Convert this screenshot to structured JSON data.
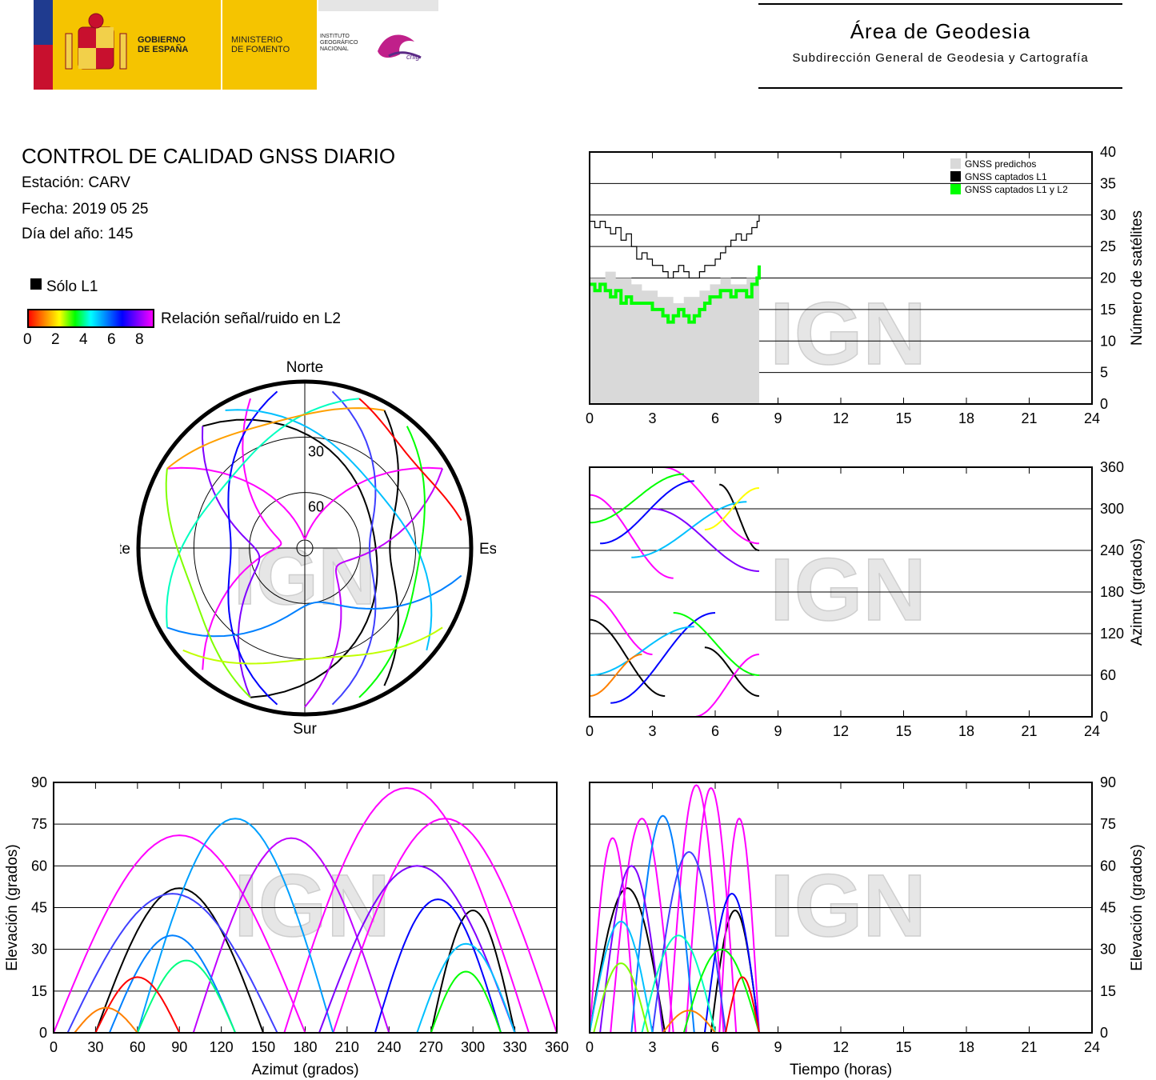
{
  "header": {
    "gov_line1": "GOBIERNO",
    "gov_line2": "DE ESPAÑA",
    "min_line1": "MINISTERIO",
    "min_line2": "DE FOMENTO",
    "ign_line1": "INSTITUTO",
    "ign_line2": "GEOGRÁFICO",
    "ign_line3": "NACIONAL",
    "cnig": "cnig",
    "area_title": "Área de Geodesia",
    "area_subtitle": "Subdirección General de Geodesia y Cartografía"
  },
  "info": {
    "title": "CONTROL DE CALIDAD GNSS DIARIO",
    "station": "Estación: CARV",
    "date": "Fecha: 2019 05 25",
    "doy": "Día del año: 145"
  },
  "legend": {
    "only_l1": "Sólo L1",
    "snr_label": "Relación señal/ruido en L2",
    "snr_ticks": [
      "0",
      "2",
      "4",
      "6",
      "8"
    ],
    "colors": [
      "#ff0000",
      "#ff8000",
      "#ffff00",
      "#00ff00",
      "#00ffff",
      "#0080ff",
      "#0000ff",
      "#8000ff",
      "#ff00ff"
    ]
  },
  "watermark": "IGN",
  "chart_data": [
    {
      "id": "sky",
      "type": "scatter",
      "title": "",
      "labels": {
        "north": "Norte",
        "south": "Sur",
        "east": "Este",
        "west": "Oeste"
      },
      "rings": [
        "30",
        "60"
      ],
      "tracks": [
        {
          "az_start": 320,
          "az_end": 200,
          "max_el": 52,
          "color": "#000000"
        },
        {
          "az_start": 30,
          "az_end": 150,
          "max_el": 44,
          "color": "#000000"
        },
        {
          "az_start": 300,
          "az_end": 60,
          "max_el": 85,
          "color": "#ff00ff"
        },
        {
          "az_start": 220,
          "az_end": 340,
          "max_el": 77,
          "color": "#ff00ff"
        },
        {
          "az_start": 60,
          "az_end": 180,
          "max_el": 70,
          "color": "#c000ff"
        },
        {
          "az_start": 200,
          "az_end": 320,
          "max_el": 65,
          "color": "#8000ff"
        },
        {
          "az_start": 10,
          "az_end": 170,
          "max_el": 55,
          "color": "#4040ff"
        },
        {
          "az_start": 190,
          "az_end": 350,
          "max_el": 50,
          "color": "#0000ff"
        },
        {
          "az_start": 100,
          "az_end": 240,
          "max_el": 60,
          "color": "#0080ff"
        },
        {
          "az_start": 330,
          "az_end": 130,
          "max_el": 40,
          "color": "#00c0ff"
        },
        {
          "az_start": 240,
          "az_end": 20,
          "max_el": 35,
          "color": "#00ffc0"
        },
        {
          "az_start": 40,
          "az_end": 160,
          "max_el": 28,
          "color": "#00ff00"
        },
        {
          "az_start": 200,
          "az_end": 300,
          "max_el": 25,
          "color": "#80ff00"
        },
        {
          "az_start": 120,
          "az_end": 230,
          "max_el": 30,
          "color": "#c0ff00"
        },
        {
          "az_start": 300,
          "az_end": 30,
          "max_el": 20,
          "color": "#ffa000"
        },
        {
          "az_start": 20,
          "az_end": 80,
          "max_el": 15,
          "color": "#ff0000"
        }
      ]
    },
    {
      "id": "satellites",
      "type": "line",
      "xlabel": "",
      "ylabel": "Número de satélites",
      "xlim": [
        0,
        24
      ],
      "ylim": [
        0,
        40
      ],
      "xticks": [
        "0",
        "3",
        "6",
        "9",
        "12",
        "15",
        "18",
        "21",
        "24"
      ],
      "yticks": [
        "0",
        "5",
        "10",
        "15",
        "20",
        "25",
        "30",
        "35",
        "40"
      ],
      "legend": [
        "GNSS predichos",
        "GNSS captados L1",
        "GNSS captados L1 y L2"
      ],
      "x": [
        0,
        0.25,
        0.5,
        0.75,
        1,
        1.25,
        1.5,
        1.75,
        2,
        2.25,
        2.5,
        2.75,
        3,
        3.25,
        3.5,
        3.75,
        4,
        4.25,
        4.5,
        4.75,
        5,
        5.25,
        5.5,
        5.75,
        6,
        6.25,
        6.5,
        6.75,
        7,
        7.25,
        7.5,
        7.75,
        8,
        8.1
      ],
      "series": [
        {
          "name": "GNSS predichos",
          "color": "#d9d9d9",
          "values": [
            20,
            20,
            20,
            21,
            21,
            20,
            20,
            20,
            19,
            19,
            18,
            18,
            18,
            17,
            17,
            17,
            16,
            16,
            17,
            17,
            17,
            18,
            18,
            19,
            19,
            20,
            20,
            19,
            19,
            19,
            20,
            20,
            21,
            23
          ]
        },
        {
          "name": "GNSS captados L1",
          "color": "#000000",
          "values": [
            29,
            28,
            29,
            28,
            27,
            28,
            26,
            27,
            25,
            23,
            24,
            23,
            22,
            22,
            21,
            20,
            21,
            22,
            21,
            20,
            20,
            21,
            22,
            22,
            23,
            24,
            25,
            26,
            27,
            26,
            27,
            28,
            29,
            30
          ]
        },
        {
          "name": "GNSS captados L1 y L2",
          "color": "#00ff00",
          "values": [
            19,
            18,
            19,
            18,
            17,
            18,
            16,
            17,
            16,
            16,
            16,
            16,
            15,
            15,
            14,
            13,
            14,
            15,
            14,
            13,
            14,
            15,
            16,
            17,
            17,
            18,
            18,
            17,
            18,
            18,
            17,
            19,
            20,
            22
          ]
        }
      ]
    },
    {
      "id": "azimuth_time",
      "type": "scatter",
      "xlabel": "",
      "ylabel": "Azimut (grados)",
      "xlim": [
        0,
        24
      ],
      "ylim": [
        0,
        360
      ],
      "xticks": [
        "0",
        "3",
        "6",
        "9",
        "12",
        "15",
        "18",
        "21",
        "24"
      ],
      "yticks": [
        "0",
        "60",
        "120",
        "180",
        "240",
        "300",
        "360"
      ],
      "tracks": [
        {
          "t0": 0,
          "t1": 3.6,
          "az0": 140,
          "az1": 30,
          "color": "#000000"
        },
        {
          "t0": 5.5,
          "t1": 8.1,
          "az0": 100,
          "az1": 30,
          "color": "#000000"
        },
        {
          "t0": 6.2,
          "t1": 8.1,
          "az0": 335,
          "az1": 240,
          "color": "#000000"
        },
        {
          "t0": 0,
          "t1": 4,
          "az0": 320,
          "az1": 200,
          "color": "#ff00ff"
        },
        {
          "t0": 3.5,
          "t1": 8.1,
          "az0": 360,
          "az1": 250,
          "color": "#ff00ff"
        },
        {
          "t0": 0,
          "t1": 3,
          "az0": 175,
          "az1": 90,
          "color": "#ff00ff"
        },
        {
          "t0": 5,
          "t1": 8.1,
          "az0": 0,
          "az1": 90,
          "color": "#ff00ff"
        },
        {
          "t0": 0.5,
          "t1": 5,
          "az0": 250,
          "az1": 340,
          "color": "#0000ff"
        },
        {
          "t0": 1,
          "t1": 6,
          "az0": 20,
          "az1": 150,
          "color": "#0000ff"
        },
        {
          "t0": 2,
          "t1": 7.5,
          "az0": 230,
          "az1": 310,
          "color": "#00c0ff"
        },
        {
          "t0": 0,
          "t1": 5,
          "az0": 60,
          "az1": 130,
          "color": "#00c0ff"
        },
        {
          "t0": 3,
          "t1": 8.1,
          "az0": 300,
          "az1": 210,
          "color": "#8000ff"
        },
        {
          "t0": 0,
          "t1": 4.5,
          "az0": 280,
          "az1": 350,
          "color": "#00ff00"
        },
        {
          "t0": 4,
          "t1": 8.1,
          "az0": 150,
          "az1": 60,
          "color": "#00ff00"
        },
        {
          "t0": 0,
          "t1": 2.5,
          "az0": 30,
          "az1": 90,
          "color": "#ff8000"
        },
        {
          "t0": 5.5,
          "t1": 8.1,
          "az0": 270,
          "az1": 330,
          "color": "#ffff00"
        }
      ]
    },
    {
      "id": "elevation_azimuth",
      "type": "scatter",
      "xlabel": "Azimut (grados)",
      "ylabel": "Elevación (grados)",
      "xlim": [
        0,
        360
      ],
      "ylim": [
        0,
        90
      ],
      "xticks": [
        "0",
        "30",
        "60",
        "90",
        "120",
        "150",
        "180",
        "210",
        "240",
        "270",
        "300",
        "330",
        "360"
      ],
      "yticks": [
        "0",
        "15",
        "30",
        "45",
        "60",
        "75",
        "90"
      ],
      "tracks": [
        {
          "az0": 30,
          "az1": 150,
          "max_el": 52,
          "color": "#000000"
        },
        {
          "az0": 270,
          "az1": 330,
          "max_el": 44,
          "color": "#000000"
        },
        {
          "az0": 165,
          "az1": 340,
          "max_el": 88,
          "color": "#ff00ff"
        },
        {
          "az0": 200,
          "az1": 360,
          "max_el": 77,
          "color": "#ff00ff"
        },
        {
          "az0": 0,
          "az1": 180,
          "max_el": 71,
          "color": "#ff00ff"
        },
        {
          "az0": 60,
          "az1": 200,
          "max_el": 77,
          "color": "#00a0ff"
        },
        {
          "az0": 100,
          "az1": 240,
          "max_el": 70,
          "color": "#c000ff"
        },
        {
          "az0": 190,
          "az1": 330,
          "max_el": 60,
          "color": "#8000ff"
        },
        {
          "az0": 10,
          "az1": 160,
          "max_el": 50,
          "color": "#4040ff"
        },
        {
          "az0": 230,
          "az1": 320,
          "max_el": 48,
          "color": "#0000ff"
        },
        {
          "az0": 40,
          "az1": 130,
          "max_el": 35,
          "color": "#0080ff"
        },
        {
          "az0": 260,
          "az1": 330,
          "max_el": 32,
          "color": "#00c0ff"
        },
        {
          "az0": 60,
          "az1": 130,
          "max_el": 26,
          "color": "#00ff80"
        },
        {
          "az0": 270,
          "az1": 320,
          "max_el": 22,
          "color": "#00ff00"
        },
        {
          "az0": 30,
          "az1": 90,
          "max_el": 20,
          "color": "#ff0000"
        },
        {
          "az0": 15,
          "az1": 60,
          "max_el": 9,
          "color": "#ff8000"
        }
      ]
    },
    {
      "id": "elevation_time",
      "type": "scatter",
      "xlabel": "Tiempo (horas)",
      "ylabel": "Elevación (grados)",
      "xlim": [
        0,
        24
      ],
      "ylim": [
        0,
        90
      ],
      "xticks": [
        "0",
        "3",
        "6",
        "9",
        "12",
        "15",
        "18",
        "21",
        "24"
      ],
      "yticks": [
        "0",
        "15",
        "30",
        "45",
        "60",
        "75",
        "90"
      ],
      "tracks": [
        {
          "t0": 0,
          "t1": 3.6,
          "max_el": 52,
          "color": "#000000"
        },
        {
          "t0": 5.8,
          "t1": 8.1,
          "max_el": 44,
          "color": "#000000"
        },
        {
          "t0": 3.8,
          "t1": 6.4,
          "max_el": 89,
          "color": "#ff00ff"
        },
        {
          "t0": 4.6,
          "t1": 7.0,
          "max_el": 88,
          "color": "#ff00ff"
        },
        {
          "t0": 0,
          "t1": 2.2,
          "max_el": 70,
          "color": "#ff00ff"
        },
        {
          "t0": 1,
          "t1": 4,
          "max_el": 77,
          "color": "#ff00ff"
        },
        {
          "t0": 6.2,
          "t1": 8.1,
          "max_el": 77,
          "color": "#ff00ff"
        },
        {
          "t0": 2,
          "t1": 5,
          "max_el": 78,
          "color": "#0080ff"
        },
        {
          "t0": 0.5,
          "t1": 3.5,
          "max_el": 60,
          "color": "#8000ff"
        },
        {
          "t0": 3,
          "t1": 6.5,
          "max_el": 65,
          "color": "#4040ff"
        },
        {
          "t0": 5.5,
          "t1": 8.1,
          "max_el": 50,
          "color": "#0000ff"
        },
        {
          "t0": 0,
          "t1": 3,
          "max_el": 40,
          "color": "#00c0ff"
        },
        {
          "t0": 2.5,
          "t1": 6,
          "max_el": 35,
          "color": "#00ffc0"
        },
        {
          "t0": 4.5,
          "t1": 8.1,
          "max_el": 30,
          "color": "#00ff00"
        },
        {
          "t0": 0.2,
          "t1": 2.8,
          "max_el": 25,
          "color": "#80ff00"
        },
        {
          "t0": 6.5,
          "t1": 8.1,
          "max_el": 20,
          "color": "#ff0000"
        },
        {
          "t0": 3.5,
          "t1": 6,
          "max_el": 8,
          "color": "#ff8000"
        }
      ]
    }
  ]
}
